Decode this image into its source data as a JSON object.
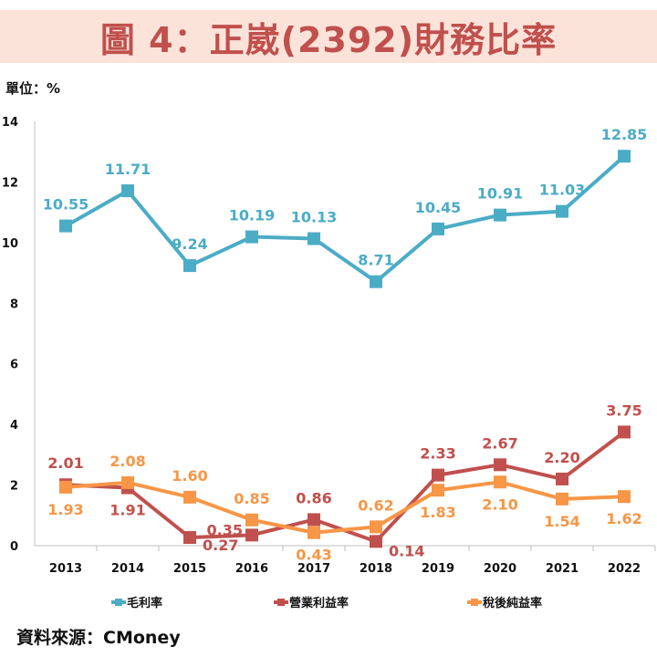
{
  "title": "圖 4：正崴(2392)財務比率",
  "unit_label": "單位：%",
  "source": "資料來源：CMoney",
  "chart_data": {
    "type": "line",
    "categories": [
      "2013",
      "2014",
      "2015",
      "2016",
      "2017",
      "2018",
      "2019",
      "2020",
      "2021",
      "2022"
    ],
    "ylim": [
      0,
      14
    ],
    "yticks": [
      0,
      2,
      4,
      6,
      8,
      10,
      12,
      14
    ],
    "grid": false,
    "legend_position": "bottom",
    "series": [
      {
        "name": "毛利率",
        "color": "#4bacc6",
        "values": [
          10.55,
          11.71,
          9.24,
          10.19,
          10.13,
          8.71,
          10.45,
          10.91,
          11.03,
          12.85
        ]
      },
      {
        "name": "營業利益率",
        "color": "#c0504d",
        "values": [
          2.01,
          1.91,
          0.27,
          0.35,
          0.86,
          0.14,
          2.33,
          2.67,
          2.2,
          3.75
        ]
      },
      {
        "name": "稅後純益率",
        "color": "#f79646",
        "values": [
          1.93,
          2.08,
          1.6,
          0.85,
          0.43,
          0.62,
          1.83,
          2.1,
          1.54,
          1.62
        ]
      }
    ]
  }
}
